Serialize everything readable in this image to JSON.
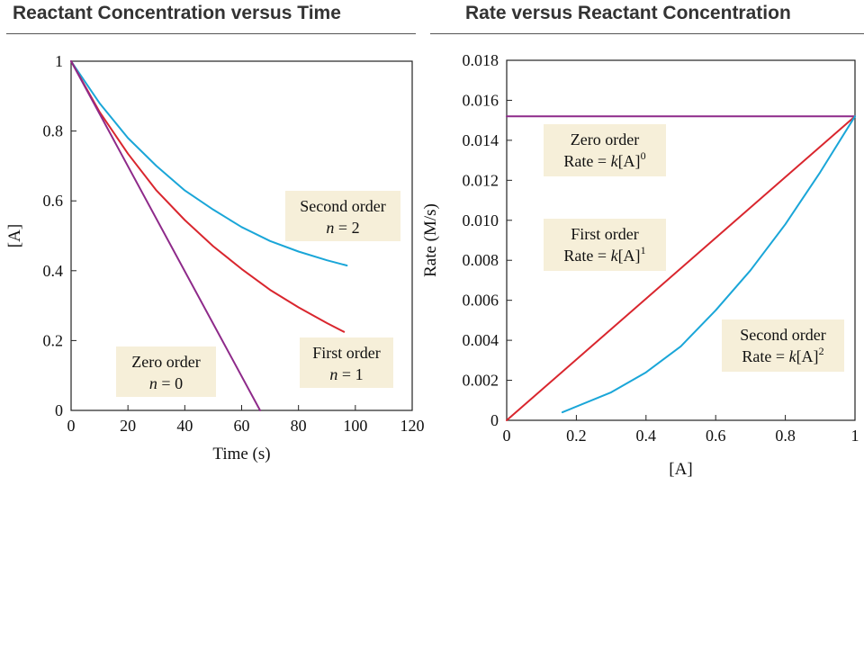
{
  "chart_data": [
    {
      "type": "line",
      "title": "Reactant Concentration versus Time",
      "xlabel": "Time (s)",
      "ylabel": "[A]",
      "xlim": [
        0,
        120
      ],
      "ylim": [
        0,
        1
      ],
      "xticks": [
        "0",
        "20",
        "40",
        "60",
        "80",
        "100",
        "120"
      ],
      "yticks": [
        "0",
        "0.2",
        "0.4",
        "0.6",
        "0.8",
        "1"
      ],
      "grid": false,
      "colors": {
        "second": "#1aa6d8",
        "first": "#d9262e",
        "zero": "#8e2a8a"
      },
      "series": [
        {
          "key": "second",
          "x": [
            0,
            10,
            20,
            30,
            40,
            50,
            60,
            70,
            80,
            90,
            97
          ],
          "y": [
            1,
            0.88,
            0.78,
            0.7,
            0.63,
            0.575,
            0.525,
            0.485,
            0.455,
            0.43,
            0.415
          ]
        },
        {
          "key": "first",
          "x": [
            0,
            10,
            20,
            30,
            40,
            50,
            60,
            70,
            80,
            90,
            96
          ],
          "y": [
            1,
            0.855,
            0.735,
            0.63,
            0.545,
            0.47,
            0.405,
            0.345,
            0.295,
            0.25,
            0.225
          ]
        },
        {
          "key": "zero",
          "x": [
            0,
            66.5
          ],
          "y": [
            1,
            0
          ]
        }
      ],
      "annotations": [
        {
          "key": "second",
          "line1": "Second order",
          "line2_var": "n",
          "line2_rest": " = 2"
        },
        {
          "key": "first",
          "line1": "First order",
          "line2_var": "n",
          "line2_rest": " = 1"
        },
        {
          "key": "zero",
          "line1": "Zero order",
          "line2_var": "n",
          "line2_rest": " = 0"
        }
      ]
    },
    {
      "type": "line",
      "title": "Rate versus Reactant Concentration",
      "xlabel": "[A]",
      "ylabel": "Rate (M/s)",
      "xlim": [
        0,
        1
      ],
      "ylim": [
        0,
        0.018
      ],
      "xticks": [
        "0",
        "0.2",
        "0.4",
        "0.6",
        "0.8",
        "1"
      ],
      "yticks": [
        "0",
        "0.002",
        "0.004",
        "0.006",
        "0.008",
        "0.010",
        "0.012",
        "0.014",
        "0.016",
        "0.018"
      ],
      "grid": false,
      "colors": {
        "second": "#1aa6d8",
        "first": "#d9262e",
        "zero": "#8e2a8a"
      },
      "series": [
        {
          "key": "zero",
          "x": [
            0,
            1
          ],
          "y": [
            0.0152,
            0.0152
          ]
        },
        {
          "key": "first",
          "x": [
            0,
            1
          ],
          "y": [
            0,
            0.0152
          ]
        },
        {
          "key": "second",
          "x": [
            0.16,
            0.3,
            0.4,
            0.5,
            0.6,
            0.7,
            0.8,
            0.9,
            1
          ],
          "y": [
            0.0004,
            0.0014,
            0.0024,
            0.0037,
            0.0055,
            0.0075,
            0.0098,
            0.0124,
            0.0152
          ]
        }
      ],
      "annotations": [
        {
          "key": "zero",
          "line1": "Zero order",
          "line2_pre": "Rate = ",
          "line2_var": "k",
          "line2_post": "[A]",
          "exp": "0"
        },
        {
          "key": "first",
          "line1": "First order",
          "line2_pre": "Rate = ",
          "line2_var": "k",
          "line2_post": "[A]",
          "exp": "1"
        },
        {
          "key": "second",
          "line1": "Second order",
          "line2_pre": "Rate = ",
          "line2_var": "k",
          "line2_post": "[A]",
          "exp": "2"
        }
      ]
    }
  ]
}
